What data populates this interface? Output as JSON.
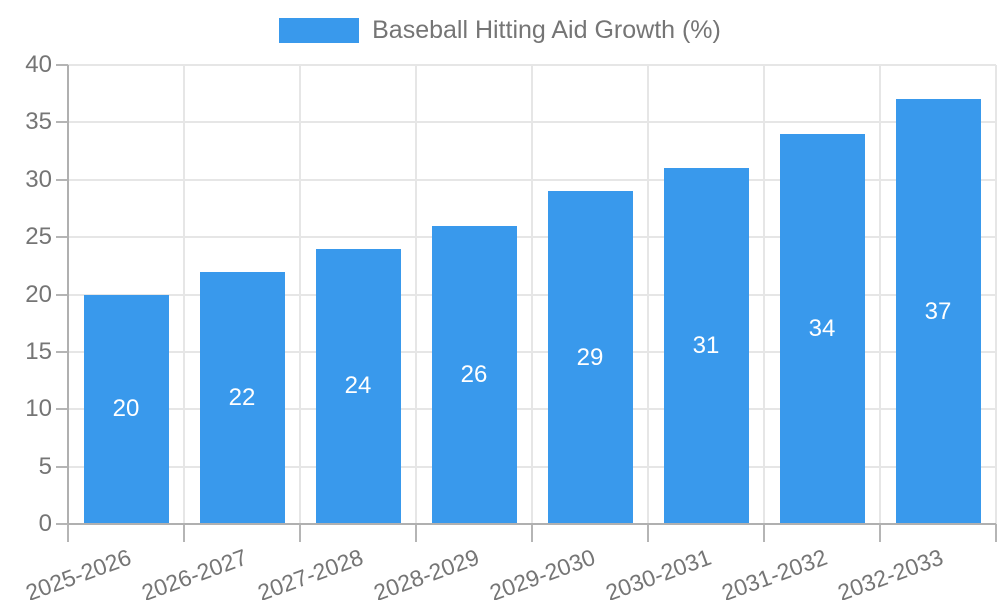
{
  "legend": {
    "label": "Baseball Hitting Aid Growth (%)"
  },
  "colors": {
    "bar": "#3999ec",
    "grid": "#e6e6e6",
    "axis": "#b0b0b0",
    "tick": "#b5b5b5",
    "label_text": "#757575",
    "value_label_text": "#ffffff",
    "background": "#ffffff"
  },
  "chart_data": {
    "type": "bar",
    "title": "Baseball Hitting Aid Growth (%)",
    "series_name": "Baseball Hitting Aid Growth (%)",
    "categories": [
      "2025-2026",
      "2026-2027",
      "2027-2028",
      "2028-2029",
      "2029-2030",
      "2030-2031",
      "2031-2032",
      "2032-2033"
    ],
    "values": [
      20,
      22,
      24,
      26,
      29,
      31,
      34,
      37
    ],
    "xlabel": "",
    "ylabel": "",
    "ylim": [
      0,
      40
    ],
    "yticks": [
      0,
      5,
      10,
      15,
      20,
      25,
      30,
      35,
      40
    ],
    "grid": true,
    "legend_position": "top",
    "value_labels": "inside-center",
    "x_label_rotation_deg": -20
  }
}
